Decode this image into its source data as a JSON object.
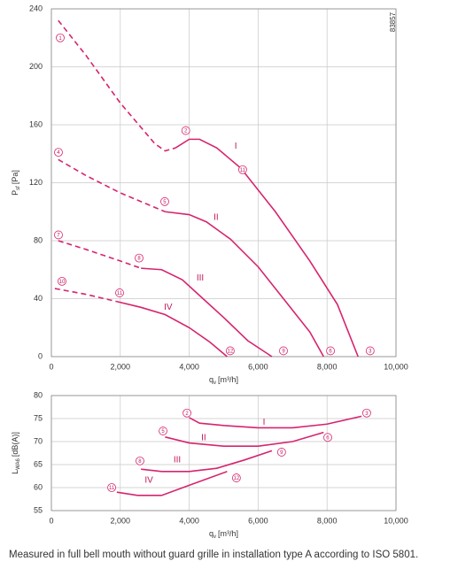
{
  "code": "83857",
  "caption": "Measured in full bell mouth without guard grille in installation type A according to ISO 5801.",
  "chart_data": [
    {
      "type": "line",
      "xlabel": {
        "main": "q",
        "sub": "v",
        "unit": "[m³/h]"
      },
      "ylabel": {
        "main": "P",
        "sub": "sf",
        "unit": "[Pa]"
      },
      "xlim": [
        0,
        10000
      ],
      "xticks": [
        0,
        {
          "value": 2000,
          "label": "2,000"
        },
        {
          "value": 4000,
          "label": "4,000"
        },
        {
          "value": 6000,
          "label": "6,000"
        },
        {
          "value": 8000,
          "label": "8,000"
        },
        {
          "value": 10000,
          "label": "10,000"
        }
      ],
      "ylim": [
        0,
        240
      ],
      "yticks": [
        0,
        40,
        80,
        120,
        160,
        200,
        240
      ],
      "grid": true,
      "series": [
        {
          "name": "I",
          "color": "#d6246e",
          "dashed": {
            "x": [
              200,
              1000,
              2000,
              3000,
              3300,
              3600
            ],
            "values": [
              232,
              208,
              175,
              147,
              142,
              144
            ]
          },
          "solid": {
            "x": [
              3600,
              4000,
              4300,
              4800,
              5500,
              6500,
              7500,
              8300,
              8900
            ],
            "values": [
              144,
              150,
              150,
              144,
              130,
              100,
              66,
              36,
              0
            ]
          }
        },
        {
          "name": "II",
          "color": "#d6246e",
          "dashed": {
            "x": [
              200,
              1000,
              2000,
              3000,
              3300
            ],
            "values": [
              136,
              125,
              113,
              103,
              100
            ]
          },
          "solid": {
            "x": [
              3300,
              4000,
              4500,
              5200,
              6000,
              6800,
              7500,
              7900
            ],
            "values": [
              100,
              98,
              93,
              81,
              62,
              38,
              17,
              0
            ]
          }
        },
        {
          "name": "III",
          "color": "#d6246e",
          "dashed": {
            "x": [
              200,
              1000,
              2000,
              2600
            ],
            "values": [
              80,
              74,
              66,
              61
            ]
          },
          "solid": {
            "x": [
              2600,
              3200,
              3800,
              4400,
              5000,
              5700,
              6400
            ],
            "values": [
              61,
              60,
              53,
              40,
              27,
              11,
              0
            ]
          }
        },
        {
          "name": "IV",
          "color": "#d6246e",
          "dashed": {
            "x": [
              100,
              1000,
              1900
            ],
            "values": [
              47,
              43,
              38
            ]
          },
          "solid": {
            "x": [
              1900,
              2600,
              3300,
              4000,
              4600,
              5100
            ],
            "values": [
              38,
              34,
              29,
              20,
              10,
              0
            ]
          }
        }
      ],
      "annotations": [
        {
          "text": "I",
          "x": 5350,
          "y": 145
        },
        {
          "text": "II",
          "x": 4780,
          "y": 96
        },
        {
          "text": "III",
          "x": 4320,
          "y": 54
        },
        {
          "text": "IV",
          "x": 3390,
          "y": 34
        }
      ],
      "points": [
        {
          "label": "1",
          "x": 257,
          "y": 220
        },
        {
          "label": "2",
          "x": 3900,
          "y": 156
        },
        {
          "label": "11",
          "x": 5550,
          "y": 129
        },
        {
          "label": "4",
          "x": 205,
          "y": 141
        },
        {
          "label": "5",
          "x": 3290,
          "y": 107
        },
        {
          "label": "7",
          "x": 205,
          "y": 84
        },
        {
          "label": "8",
          "x": 2545,
          "y": 68
        },
        {
          "label": "10",
          "x": 308,
          "y": 52
        },
        {
          "label": "11",
          "x": 1980,
          "y": 44
        },
        {
          "label": "12",
          "x": 5190,
          "y": 4
        },
        {
          "label": "9",
          "x": 6735,
          "y": 4
        },
        {
          "label": "6",
          "x": 8100,
          "y": 4
        },
        {
          "label": "3",
          "x": 9250,
          "y": 4
        }
      ]
    },
    {
      "type": "line",
      "xlabel": {
        "main": "q",
        "sub": "v",
        "unit": "[m³/h]"
      },
      "ylabel": {
        "main": "L",
        "sub": "WA6",
        "unit": "[dB(A)]"
      },
      "xlim": [
        0,
        10000
      ],
      "xticks": [
        0,
        {
          "value": 2000,
          "label": "2,000"
        },
        {
          "value": 4000,
          "label": "4,000"
        },
        {
          "value": 6000,
          "label": "6,000"
        },
        {
          "value": 8000,
          "label": "8,000"
        },
        {
          "value": 10000,
          "label": "10,000"
        }
      ],
      "ylim": [
        55,
        80
      ],
      "yticks": [
        55,
        60,
        65,
        70,
        75,
        80
      ],
      "grid": true,
      "series": [
        {
          "name": "I",
          "color": "#d6246e",
          "solid": {
            "x": [
              4000,
              4300,
              5000,
              6000,
              7000,
              8000,
              9000
            ],
            "values": [
              75.2,
              74,
              73.5,
              73,
              73,
              73.8,
              75.5
            ]
          }
        },
        {
          "name": "II",
          "color": "#d6246e",
          "solid": {
            "x": [
              3300,
              4000,
              5000,
              6000,
              7000,
              7900
            ],
            "values": [
              71,
              69.7,
              69,
              69,
              70,
              72
            ]
          }
        },
        {
          "name": "III",
          "color": "#d6246e",
          "solid": {
            "x": [
              2600,
              3200,
              4000,
              4800,
              5600,
              6400
            ],
            "values": [
              64,
              63.5,
              63.5,
              64.2,
              66,
              68
            ]
          }
        },
        {
          "name": "IV",
          "color": "#d6246e",
          "solid": {
            "x": [
              1900,
              2500,
              3200,
              4000,
              5100
            ],
            "values": [
              59,
              58.3,
              58.3,
              60.5,
              63.5
            ]
          }
        }
      ],
      "annotations": [
        {
          "text": "I",
          "x": 6170,
          "y": 74.2
        },
        {
          "text": "II",
          "x": 4420,
          "y": 70.8
        },
        {
          "text": "III",
          "x": 3650,
          "y": 66
        },
        {
          "text": "IV",
          "x": 2830,
          "y": 61.6
        }
      ],
      "points": [
        {
          "label": "2",
          "x": 3935,
          "y": 76.2
        },
        {
          "label": "3",
          "x": 9150,
          "y": 76.2
        },
        {
          "label": "5",
          "x": 3240,
          "y": 72.3
        },
        {
          "label": "6",
          "x": 8020,
          "y": 70.9
        },
        {
          "label": "8",
          "x": 2570,
          "y": 65.8
        },
        {
          "label": "9",
          "x": 6680,
          "y": 67.7
        },
        {
          "label": "11",
          "x": 1750,
          "y": 60
        },
        {
          "label": "12",
          "x": 5370,
          "y": 62.1
        }
      ]
    }
  ]
}
